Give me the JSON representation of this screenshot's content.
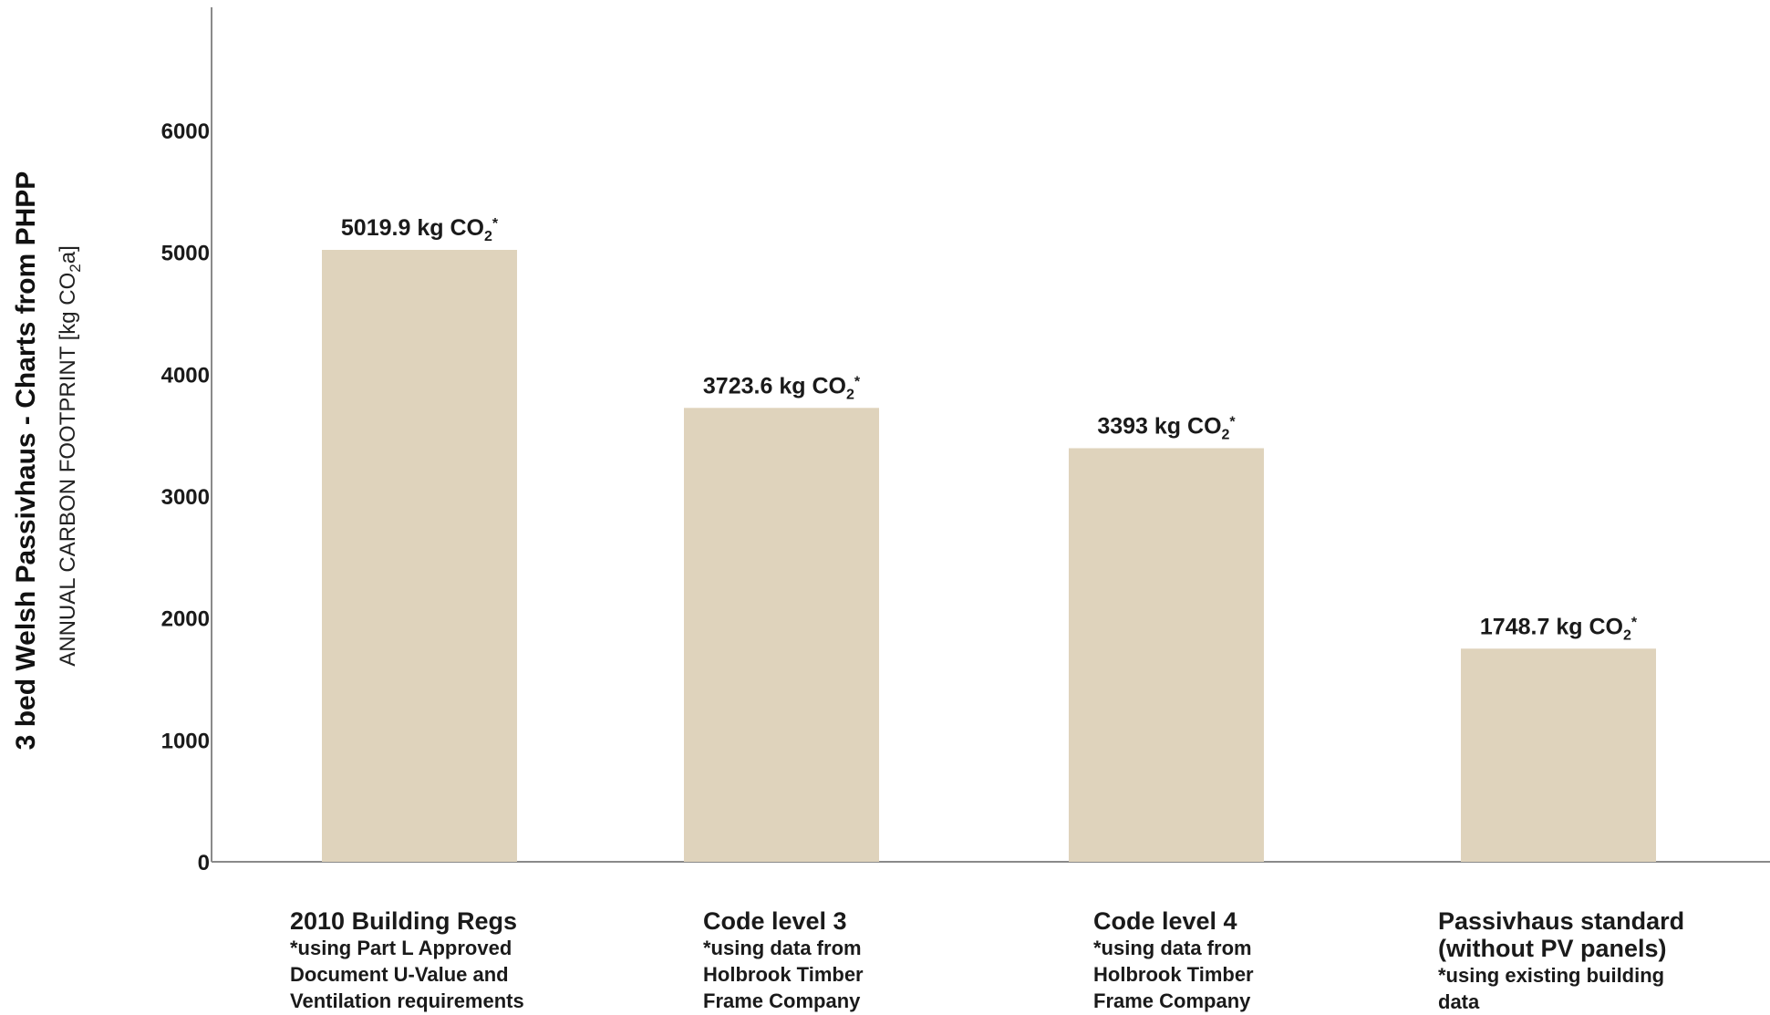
{
  "chart_data": {
    "type": "bar",
    "title": "3 bed Welsh Passivhaus  - Charts from PHPP",
    "ylabel": {
      "pre": "ANNUAL CARBON FOOTPRINT [kg CO",
      "sub": "2",
      "post": "a]"
    },
    "ylim": [
      0,
      7000
    ],
    "yticks": [
      0,
      1000,
      2000,
      3000,
      4000,
      5000,
      6000
    ],
    "grid": false,
    "legend": "none",
    "colors": {
      "bar": "#dfd3bc",
      "axis": "#8a8a8a"
    },
    "categories": [
      {
        "title": [
          "2010 Building Regs"
        ],
        "note": [
          "*using Part L Approved",
          "Document U-Value and",
          "Ventilation requirements"
        ]
      },
      {
        "title": [
          "Code level 3"
        ],
        "note": [
          "*using data from",
          "Holbrook Timber",
          "Frame Company"
        ]
      },
      {
        "title": [
          "Code level 4"
        ],
        "note": [
          "*using data from",
          "Holbrook Timber",
          "Frame Company"
        ]
      },
      {
        "title": [
          "Passivhaus standard",
          "(without PV panels)"
        ],
        "note": [
          "*using existing building",
          "data"
        ]
      }
    ],
    "values": [
      5019.9,
      3723.6,
      3393,
      1748.7
    ],
    "data_labels": [
      {
        "pre": "5019.9 kg CO",
        "sub": "2",
        "post": "*"
      },
      {
        "pre": "3723.6 kg CO",
        "sub": "2",
        "post": "*"
      },
      {
        "pre": "3393 kg CO",
        "sub": "2",
        "post": "*"
      },
      {
        "pre": "1748.7 kg CO",
        "sub": "2",
        "post": "*"
      }
    ]
  }
}
